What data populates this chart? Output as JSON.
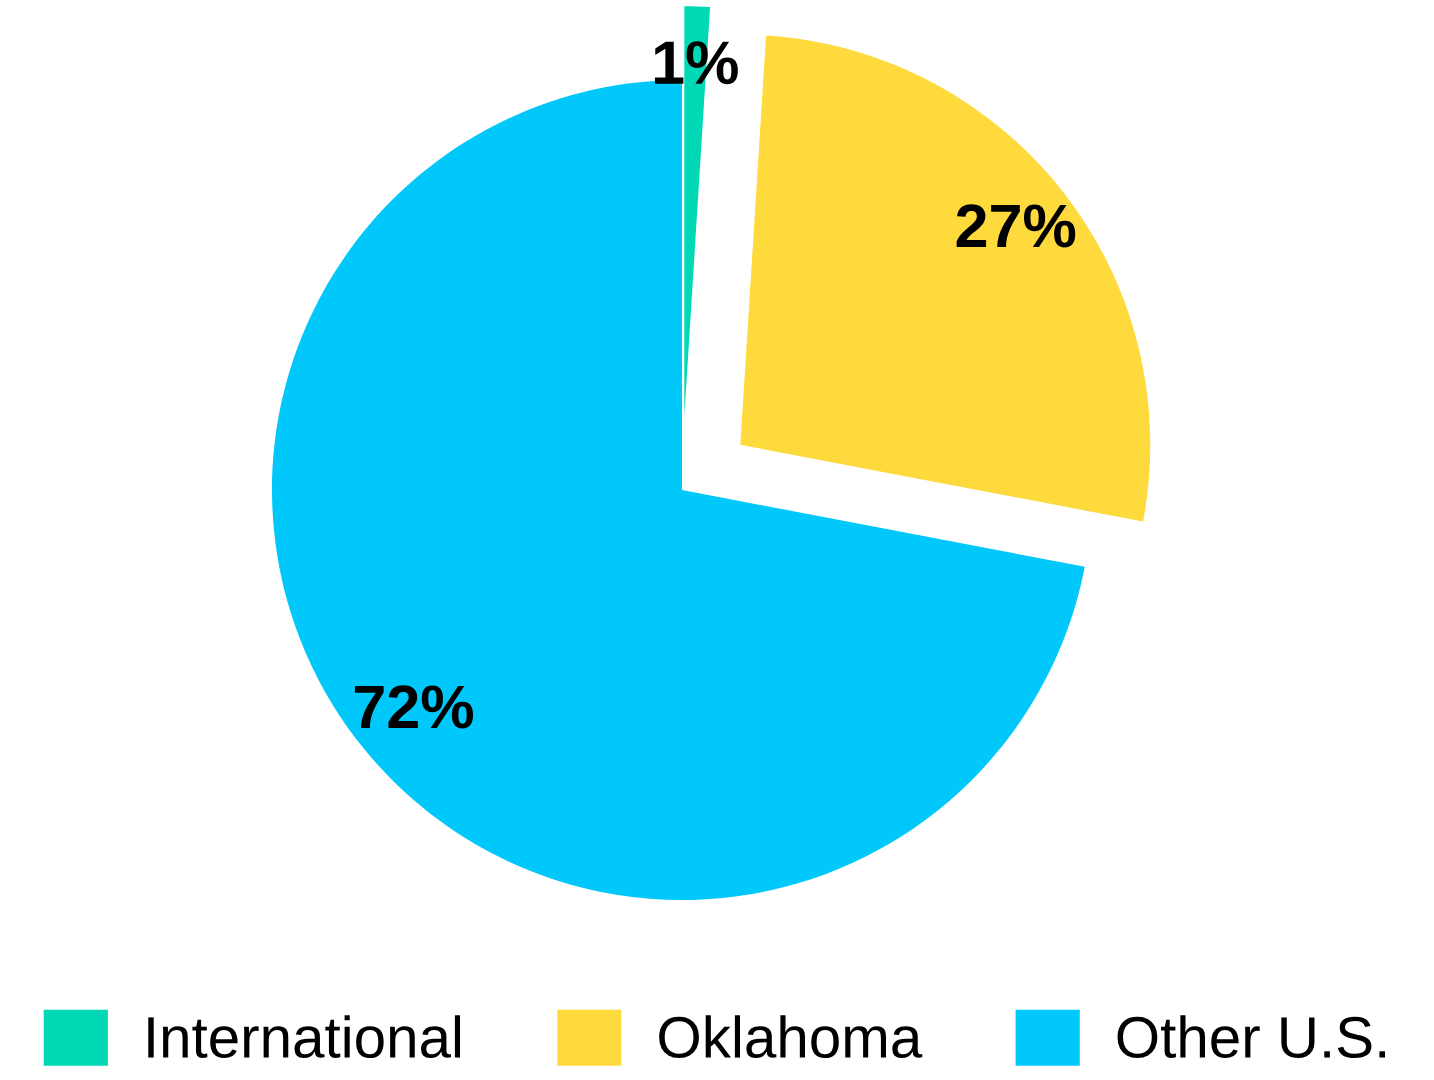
{
  "chart_data": {
    "type": "pie",
    "categories": [
      "International",
      "Oklahoma",
      "Other U.S."
    ],
    "values": [
      1,
      27,
      72
    ],
    "colors": [
      "#00d8b6",
      "#ffda3d",
      "#00c8fa"
    ],
    "value_labels": [
      "1%",
      "27%",
      "72%"
    ],
    "legend": "bottom"
  }
}
